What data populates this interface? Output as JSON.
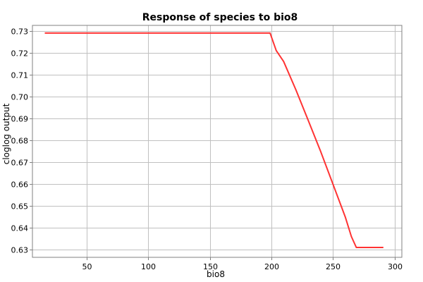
{
  "chart_data": {
    "type": "line",
    "title": "Response of species to bio8",
    "xlabel": "bio8",
    "ylabel": "cloglog output",
    "xlim": [
      6,
      306
    ],
    "ylim": [
      0.6265,
      0.7325
    ],
    "xticks": [
      50,
      100,
      150,
      200,
      250,
      300
    ],
    "yticks": [
      0.63,
      0.64,
      0.65,
      0.66,
      0.67,
      0.68,
      0.69,
      0.7,
      0.71,
      0.72,
      0.73
    ],
    "ytick_labels": [
      "0.63",
      "0.64",
      "0.65",
      "0.66",
      "0.67",
      "0.68",
      "0.69",
      "0.70",
      "0.71",
      "0.72",
      "0.73"
    ],
    "grid": true,
    "series": [
      {
        "color": "#ff3333",
        "x": [
          16,
          199,
          204,
          210,
          220,
          230,
          240,
          250,
          260,
          265,
          269,
          291
        ],
        "y": [
          0.729,
          0.729,
          0.721,
          0.716,
          0.703,
          0.689,
          0.675,
          0.66,
          0.645,
          0.636,
          0.631,
          0.631
        ]
      }
    ]
  }
}
